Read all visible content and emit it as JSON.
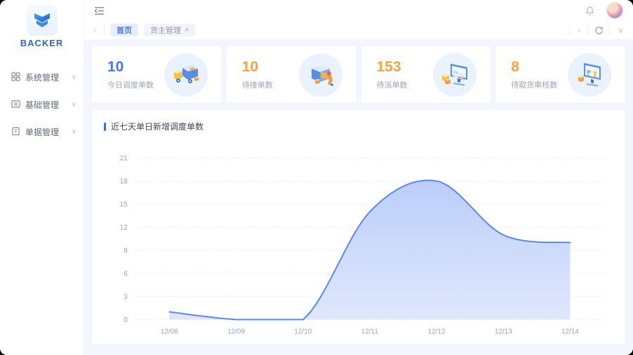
{
  "sidebar": {
    "logo_text": "BACKER",
    "items": [
      {
        "label": "系统管理",
        "icon": "grid-icon"
      },
      {
        "label": "基础管理",
        "icon": "form-icon"
      },
      {
        "label": "单据管理",
        "icon": "document-icon"
      }
    ]
  },
  "header": {
    "icons": [
      "collapse-sidebar",
      "notification-bell",
      "user-avatar"
    ]
  },
  "tabbar": {
    "tabs": [
      {
        "label": "首页",
        "active": true,
        "closable": false
      },
      {
        "label": "货主管理",
        "active": false,
        "closable": true
      }
    ],
    "close_glyph": "×"
  },
  "stats": [
    {
      "value": "10",
      "label": "今日调度单数",
      "color": "#4874f5",
      "icon": "truck-illustration"
    },
    {
      "value": "10",
      "label": "待接单数",
      "color": "#f9a23c",
      "icon": "package-worker-illustration"
    },
    {
      "value": "153",
      "label": "待派单数",
      "color": "#f9a23c",
      "icon": "monitor-orders-illustration"
    },
    {
      "value": "8",
      "label": "待取货审核数",
      "color": "#f9a23c",
      "icon": "monitor-upload-illustration"
    }
  ],
  "chart_data": {
    "type": "area",
    "title": "近七天单日新增调度单数",
    "x": [
      "12/08",
      "12/09",
      "12/10",
      "12/11",
      "12/12",
      "12/13",
      "12/14"
    ],
    "series": [
      {
        "name": "新增调度单数",
        "values": [
          1,
          0,
          0,
          14,
          18,
          11,
          10
        ]
      }
    ],
    "ylim": [
      0,
      21
    ],
    "yticks": [
      0,
      3,
      6,
      9,
      12,
      15,
      18,
      21
    ],
    "grid": "dashed-horizontal",
    "legend": "none",
    "line_color": "#5b87f5",
    "fill_top": "#b7cbf9",
    "fill_bottom": "#d9e3fc",
    "tick_color": "#98a2b3",
    "grid_color": "#e6e9f0"
  }
}
